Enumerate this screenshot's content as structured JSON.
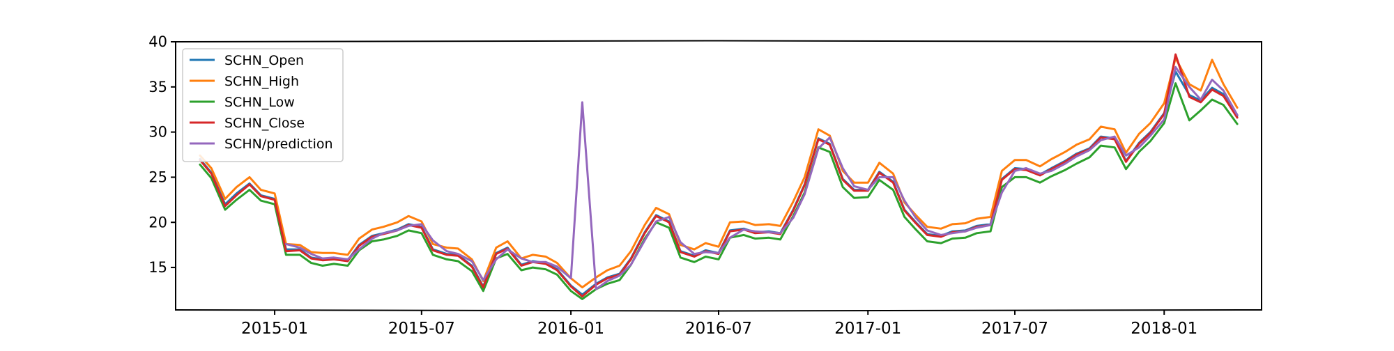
{
  "chart_data": {
    "type": "line",
    "title": "",
    "xlabel": "",
    "ylabel": "",
    "x_range": [
      "2014-09-01",
      "2018-05-01"
    ],
    "ylim": [
      10.3,
      40
    ],
    "yticks": [
      15,
      20,
      25,
      30,
      35,
      40
    ],
    "xticks": [
      {
        "date": "2015-01-01",
        "label": "2015-01"
      },
      {
        "date": "2015-07-01",
        "label": "2015-07"
      },
      {
        "date": "2016-01-01",
        "label": "2016-01"
      },
      {
        "date": "2016-07-01",
        "label": "2016-07"
      },
      {
        "date": "2017-01-01",
        "label": "2017-01"
      },
      {
        "date": "2017-07-01",
        "label": "2017-07"
      },
      {
        "date": "2018-01-01",
        "label": "2018-01"
      }
    ],
    "grid": false,
    "legend_position": "top-left",
    "dates": [
      "2014-10-01",
      "2014-10-15",
      "2014-11-01",
      "2014-11-15",
      "2014-12-01",
      "2014-12-15",
      "2015-01-01",
      "2015-01-15",
      "2015-02-01",
      "2015-02-15",
      "2015-03-01",
      "2015-03-15",
      "2015-04-01",
      "2015-04-15",
      "2015-05-01",
      "2015-05-15",
      "2015-06-01",
      "2015-06-15",
      "2015-07-01",
      "2015-07-15",
      "2015-08-01",
      "2015-08-15",
      "2015-09-01",
      "2015-09-15",
      "2015-10-01",
      "2015-10-15",
      "2015-11-01",
      "2015-11-15",
      "2015-12-01",
      "2015-12-15",
      "2016-01-01",
      "2016-01-15",
      "2016-02-01",
      "2016-02-15",
      "2016-03-01",
      "2016-03-15",
      "2016-04-01",
      "2016-04-15",
      "2016-05-01",
      "2016-05-15",
      "2016-06-01",
      "2016-06-15",
      "2016-07-01",
      "2016-07-15",
      "2016-08-01",
      "2016-08-15",
      "2016-09-01",
      "2016-09-15",
      "2016-10-01",
      "2016-10-15",
      "2016-11-01",
      "2016-11-15",
      "2016-12-01",
      "2016-12-15",
      "2017-01-01",
      "2017-01-15",
      "2017-02-01",
      "2017-02-15",
      "2017-03-01",
      "2017-03-15",
      "2017-04-01",
      "2017-04-15",
      "2017-05-01",
      "2017-05-15",
      "2017-06-01",
      "2017-06-15",
      "2017-07-01",
      "2017-07-15",
      "2017-08-01",
      "2017-08-15",
      "2017-09-01",
      "2017-09-15",
      "2017-10-01",
      "2017-10-15",
      "2017-11-01",
      "2017-11-15",
      "2017-12-01",
      "2017-12-15",
      "2018-01-01",
      "2018-01-15",
      "2018-02-01",
      "2018-02-15",
      "2018-03-01",
      "2018-03-15",
      "2018-04-01"
    ],
    "series": [
      {
        "name": "SCHN_Open",
        "color": "#1f77b4",
        "values": [
          27.0,
          25.5,
          22.0,
          23.2,
          24.3,
          23.0,
          22.6,
          17.0,
          17.0,
          16.1,
          15.9,
          16.0,
          15.8,
          17.5,
          18.5,
          18.8,
          19.2,
          19.8,
          19.5,
          17.0,
          16.5,
          16.4,
          15.2,
          12.9,
          16.6,
          17.2,
          15.3,
          15.7,
          15.5,
          14.8,
          13.0,
          12.0,
          13.2,
          13.9,
          14.3,
          16.0,
          18.9,
          20.8,
          20.1,
          16.8,
          16.3,
          16.9,
          16.6,
          19.1,
          19.3,
          18.9,
          19.0,
          18.8,
          21.4,
          24.2,
          29.3,
          28.7,
          24.8,
          23.6,
          23.6,
          25.6,
          24.5,
          21.4,
          20.0,
          18.7,
          18.5,
          19.0,
          19.1,
          19.6,
          19.8,
          24.8,
          26.0,
          25.9,
          25.3,
          26.0,
          26.8,
          27.6,
          28.2,
          29.5,
          29.3,
          26.8,
          28.8,
          30.0,
          32.1,
          36.7,
          34.1,
          33.5,
          34.9,
          34.2,
          31.8
        ]
      },
      {
        "name": "SCHN_High",
        "color": "#ff7f0e",
        "values": [
          27.4,
          26.0,
          22.6,
          23.9,
          25.0,
          23.6,
          23.2,
          17.6,
          17.5,
          16.7,
          16.6,
          16.6,
          16.4,
          18.2,
          19.2,
          19.5,
          20.0,
          20.7,
          20.1,
          17.6,
          17.2,
          17.1,
          15.9,
          13.5,
          17.2,
          17.9,
          16.0,
          16.4,
          16.2,
          15.5,
          13.8,
          12.8,
          13.9,
          14.7,
          15.2,
          16.8,
          19.7,
          21.6,
          20.9,
          17.5,
          17.0,
          17.7,
          17.3,
          20.0,
          20.1,
          19.7,
          19.8,
          19.6,
          22.3,
          25.0,
          30.3,
          29.6,
          25.7,
          24.4,
          24.4,
          26.6,
          25.4,
          22.2,
          20.8,
          19.5,
          19.3,
          19.8,
          19.9,
          20.4,
          20.6,
          25.7,
          26.9,
          26.9,
          26.2,
          27.0,
          27.8,
          28.6,
          29.2,
          30.6,
          30.3,
          27.7,
          29.8,
          31.0,
          33.2,
          38.2,
          35.3,
          34.6,
          38.0,
          35.3,
          32.7
        ]
      },
      {
        "name": "SCHN_Low",
        "color": "#2ca02c",
        "values": [
          26.4,
          24.9,
          21.4,
          22.5,
          23.6,
          22.4,
          22.0,
          16.4,
          16.4,
          15.5,
          15.2,
          15.4,
          15.2,
          16.9,
          17.9,
          18.1,
          18.5,
          19.1,
          18.8,
          16.4,
          15.9,
          15.7,
          14.6,
          12.4,
          16.0,
          16.5,
          14.7,
          15.0,
          14.8,
          14.2,
          12.4,
          11.5,
          12.6,
          13.2,
          13.6,
          15.3,
          18.2,
          20.0,
          19.4,
          16.1,
          15.6,
          16.2,
          15.9,
          18.3,
          18.6,
          18.2,
          18.3,
          18.1,
          20.7,
          23.3,
          28.3,
          27.8,
          23.9,
          22.7,
          22.8,
          24.7,
          23.6,
          20.6,
          19.2,
          17.9,
          17.7,
          18.2,
          18.3,
          18.8,
          19.0,
          23.9,
          25.0,
          25.0,
          24.4,
          25.1,
          25.8,
          26.5,
          27.2,
          28.5,
          28.3,
          25.9,
          27.8,
          29.0,
          31.0,
          35.4,
          31.3,
          32.4,
          33.6,
          33.0,
          30.9
        ]
      },
      {
        "name": "SCHN_Close",
        "color": "#d62728",
        "values": [
          26.9,
          25.4,
          21.8,
          23.0,
          24.2,
          22.9,
          22.5,
          16.8,
          16.9,
          16.0,
          15.8,
          15.9,
          15.7,
          17.4,
          18.4,
          18.7,
          19.1,
          19.7,
          19.4,
          16.9,
          16.4,
          16.3,
          15.1,
          12.8,
          16.5,
          17.1,
          15.2,
          15.6,
          15.4,
          14.7,
          12.9,
          11.8,
          13.1,
          13.8,
          14.2,
          15.9,
          18.8,
          20.7,
          20.0,
          16.7,
          16.2,
          16.8,
          16.5,
          19.0,
          19.2,
          18.8,
          18.9,
          18.7,
          21.3,
          24.1,
          29.2,
          28.6,
          24.7,
          23.5,
          23.5,
          25.5,
          24.4,
          21.3,
          19.9,
          18.6,
          18.4,
          18.9,
          19.0,
          19.5,
          19.7,
          24.7,
          25.9,
          25.8,
          25.2,
          25.9,
          26.7,
          27.5,
          28.1,
          29.4,
          29.2,
          26.7,
          28.7,
          29.9,
          32.0,
          38.6,
          33.9,
          33.3,
          34.7,
          34.0,
          31.6
        ]
      },
      {
        "name": "SCHN/prediction",
        "color": "#9467bd",
        "values": [
          null,
          null,
          null,
          null,
          null,
          null,
          null,
          17.6,
          17.2,
          16.5,
          16.0,
          16.1,
          15.9,
          17.0,
          18.2,
          18.8,
          19.1,
          19.6,
          19.8,
          18.0,
          16.8,
          16.5,
          15.7,
          13.6,
          15.9,
          17.0,
          16.0,
          15.6,
          15.6,
          15.1,
          13.8,
          33.3,
          12.6,
          13.5,
          14.1,
          15.3,
          18.0,
          20.1,
          20.6,
          17.8,
          16.5,
          16.7,
          16.6,
          18.3,
          19.2,
          19.0,
          18.9,
          18.8,
          20.5,
          23.1,
          28.2,
          29.4,
          26.0,
          24.0,
          23.6,
          25.0,
          25.0,
          22.4,
          20.5,
          19.1,
          18.6,
          18.8,
          19.0,
          19.4,
          19.7,
          23.3,
          25.7,
          26.0,
          25.4,
          25.7,
          26.5,
          27.3,
          28.0,
          29.1,
          29.5,
          27.4,
          28.3,
          29.6,
          31.4,
          37.2,
          35.0,
          33.6,
          35.8,
          34.6,
          31.9
        ]
      }
    ]
  }
}
